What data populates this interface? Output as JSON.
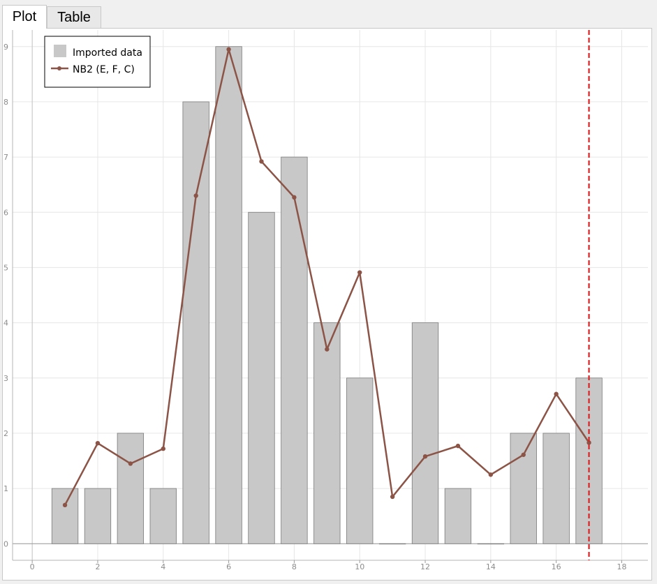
{
  "tabs": [
    {
      "label": "Plot",
      "active": true
    },
    {
      "label": "Table",
      "active": false
    }
  ],
  "chart_data": {
    "type": "bar",
    "x": [
      1,
      2,
      3,
      4,
      5,
      6,
      7,
      8,
      9,
      10,
      11,
      12,
      13,
      14,
      15,
      16,
      17
    ],
    "series": [
      {
        "name": "Imported data",
        "type": "bar",
        "color": "#c8c8c8",
        "values": [
          1,
          1,
          2,
          1,
          8,
          9,
          6,
          7,
          4,
          3,
          0,
          4,
          1,
          0,
          2,
          2,
          3
        ]
      },
      {
        "name": "NB2 (E, F, C)",
        "type": "line",
        "color": "#8b5446",
        "values": [
          0.7,
          1.82,
          1.45,
          1.72,
          6.3,
          8.95,
          6.92,
          6.27,
          3.52,
          4.91,
          0.85,
          1.58,
          1.77,
          1.25,
          1.61,
          2.71,
          1.83
        ]
      }
    ],
    "vline": {
      "x": 17,
      "color": "#e02020",
      "style": "dashed"
    },
    "xlim": [
      -0.6,
      18.8
    ],
    "ylim": [
      -0.3,
      9.3
    ],
    "xticks": [
      "0",
      "2",
      "4",
      "6",
      "8",
      "10",
      "12",
      "14",
      "16",
      "18"
    ],
    "yticks": [
      "0",
      "1",
      "2",
      "3",
      "4",
      "5",
      "6",
      "7",
      "8",
      "9"
    ],
    "legend_position": "top-left",
    "grid": true
  }
}
